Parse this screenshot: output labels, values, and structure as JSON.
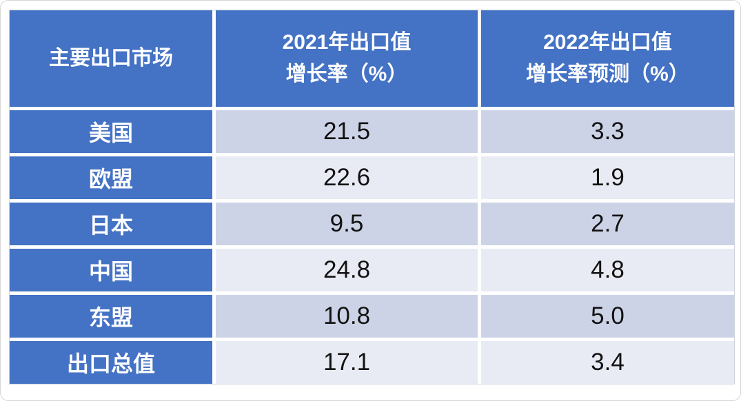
{
  "colors": {
    "header_blue": "#4472C4",
    "band_dark": "#CDD3E6",
    "band_light": "#E9EBF4",
    "header_text": "#FFFFFF",
    "value_text": "#121212",
    "gridline": "#FFFFFF"
  },
  "table": {
    "headers": [
      "主要出口市场",
      "2021年出口值\n增长率（%）",
      "2022年出口值\n增长率预测（%）"
    ],
    "rows": [
      {
        "market": "美国",
        "y2021": "21.5",
        "y2022": "3.3"
      },
      {
        "market": "欧盟",
        "y2021": "22.6",
        "y2022": "1.9"
      },
      {
        "market": "日本",
        "y2021": "9.5",
        "y2022": "2.7"
      },
      {
        "market": "中国",
        "y2021": "24.8",
        "y2022": "4.8"
      },
      {
        "market": "东盟",
        "y2021": "10.8",
        "y2022": "5.0"
      },
      {
        "market": "出口总值",
        "y2021": "17.1",
        "y2022": "3.4"
      }
    ]
  },
  "chart_data": {
    "type": "table",
    "title": "",
    "columns": [
      "主要出口市场",
      "2021年出口值增长率（%）",
      "2022年出口值增长率预测（%）"
    ],
    "categories": [
      "美国",
      "欧盟",
      "日本",
      "中国",
      "东盟",
      "出口总值"
    ],
    "series": [
      {
        "name": "2021年出口值增长率（%）",
        "values": [
          21.5,
          22.6,
          9.5,
          24.8,
          10.8,
          17.1
        ]
      },
      {
        "name": "2022年出口值增长率预测（%）",
        "values": [
          3.3,
          1.9,
          2.7,
          4.8,
          5.0,
          3.4
        ]
      }
    ],
    "layout": {
      "grid": "white gaps between cells",
      "banding": "alternating row fills"
    }
  }
}
